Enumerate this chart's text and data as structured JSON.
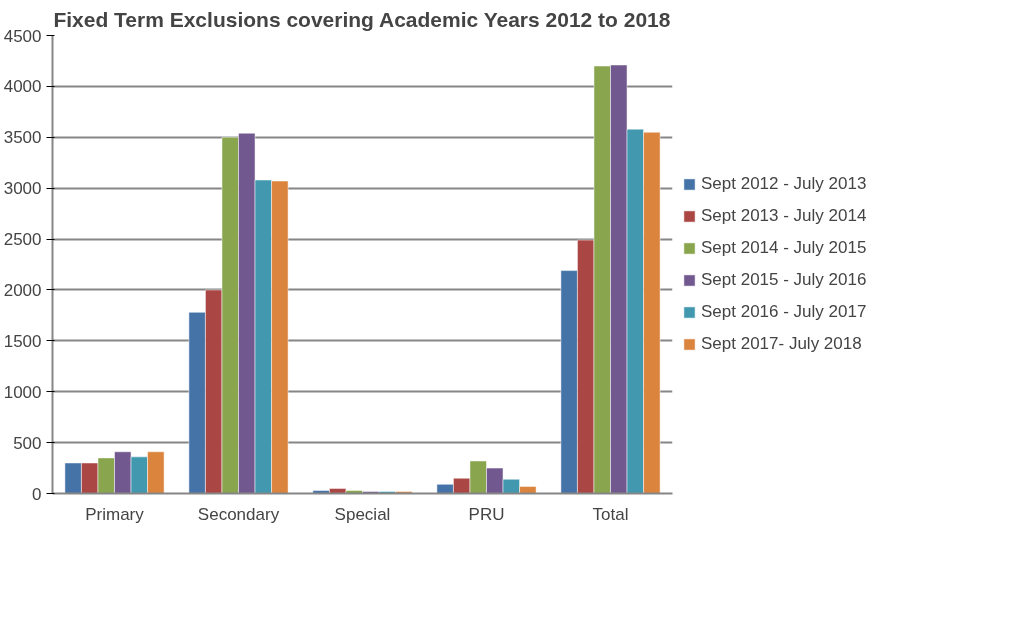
{
  "chart_data": {
    "type": "bar",
    "title": "Fixed Term Exclusions covering Academic Years 2012 to 2018",
    "categories": [
      "Primary",
      "Secondary",
      "Special",
      "PRU",
      "Total"
    ],
    "series": [
      {
        "name": "Sept 2012 - July 2013",
        "color": "#4572a7",
        "values": [
          300,
          1780,
          30,
          90,
          2190
        ]
      },
      {
        "name": "Sept 2013 - July 2014",
        "color": "#aa4643",
        "values": [
          300,
          2000,
          50,
          150,
          2490
        ]
      },
      {
        "name": "Sept 2014 - July 2015",
        "color": "#89a54e",
        "values": [
          350,
          3500,
          30,
          320,
          4200
        ]
      },
      {
        "name": "Sept 2015 - July 2016",
        "color": "#71588f",
        "values": [
          410,
          3540,
          20,
          250,
          4210
        ]
      },
      {
        "name": "Sept 2016 - July 2017",
        "color": "#4198af",
        "values": [
          360,
          3080,
          20,
          140,
          3580
        ]
      },
      {
        "name": "Sept 2017- July 2018",
        "color": "#db843d",
        "values": [
          410,
          3070,
          20,
          70,
          3550
        ]
      }
    ],
    "ylim": [
      0,
      4500
    ],
    "yticks": [
      0,
      500,
      1000,
      1500,
      2000,
      2500,
      3000,
      3500,
      4000,
      4500
    ],
    "grid": "y",
    "legend": "right"
  }
}
